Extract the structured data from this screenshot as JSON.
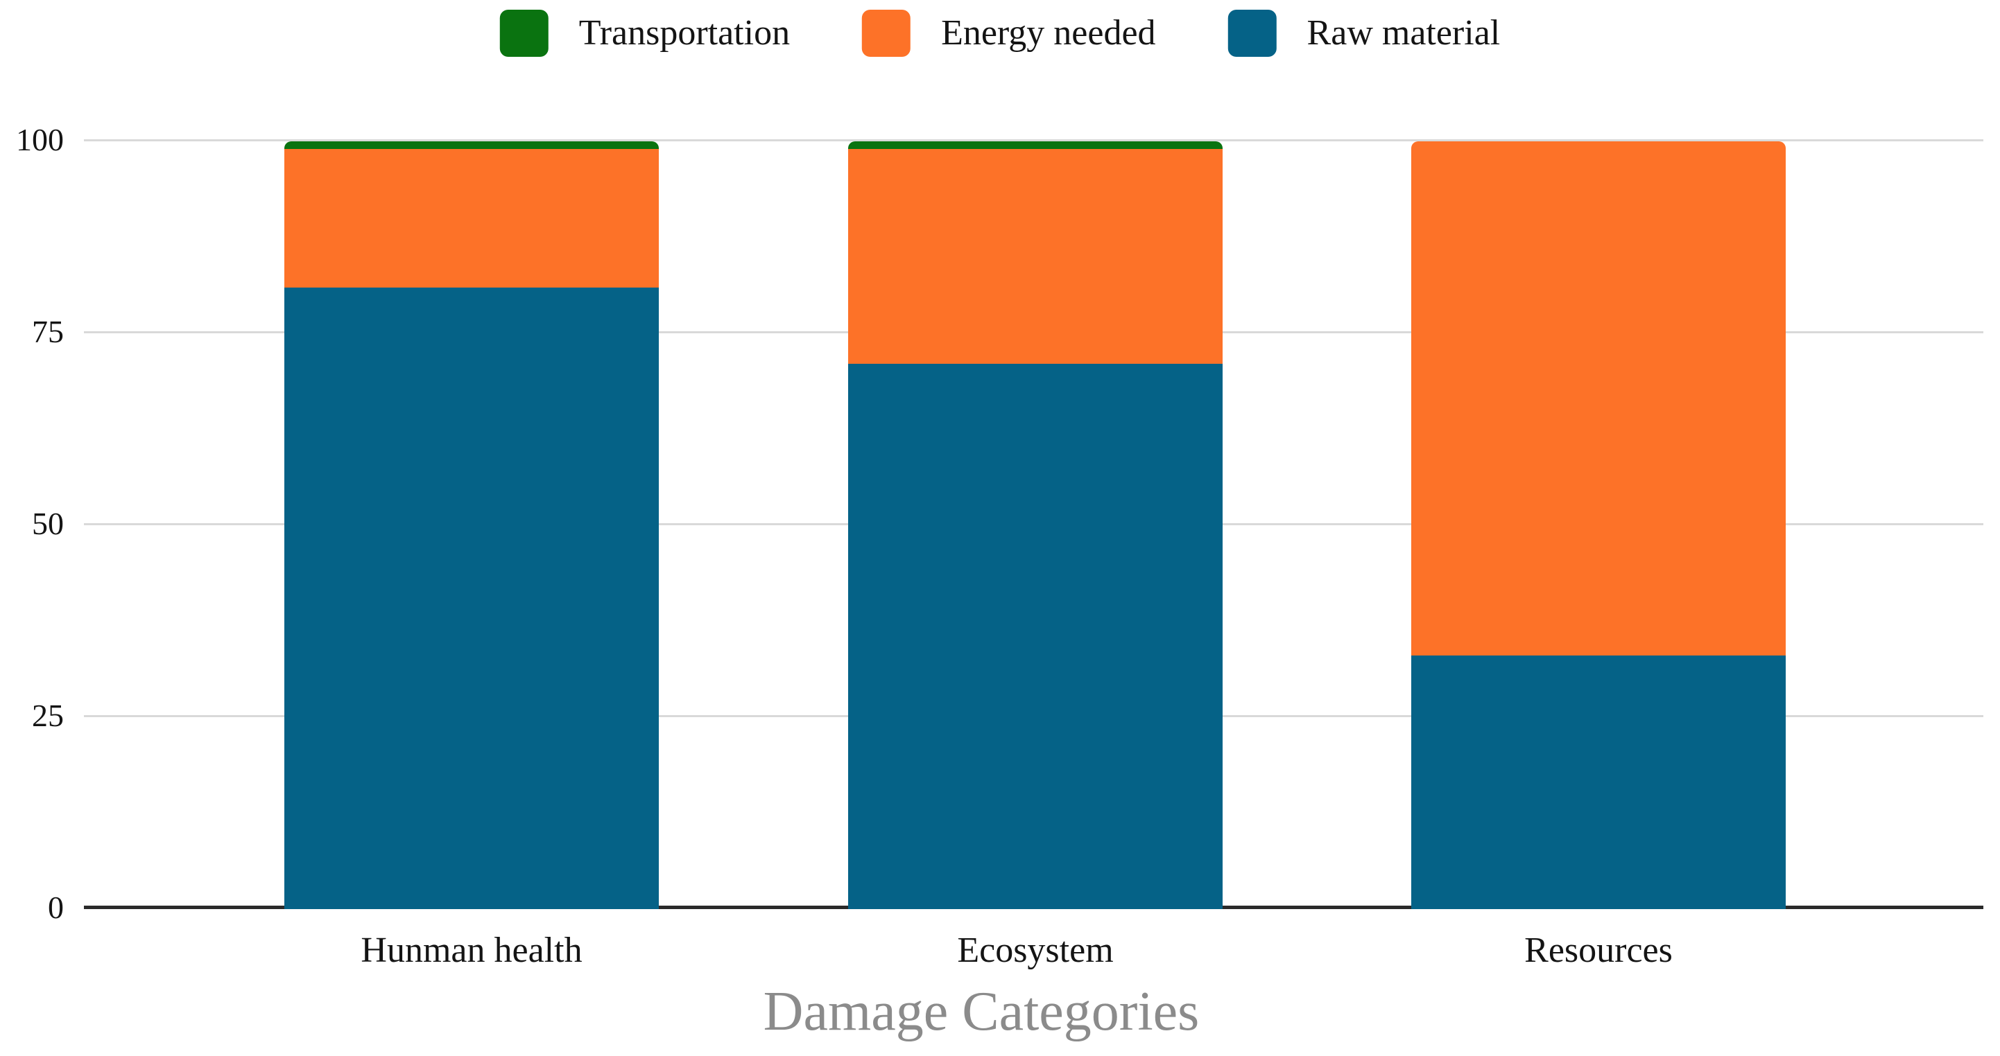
{
  "chart_data": {
    "type": "bar",
    "stacked": true,
    "categories": [
      "Hunman health",
      "Ecosystem",
      "Resources"
    ],
    "series": [
      {
        "name": "Transportation",
        "color": "#0a7310",
        "values": [
          1,
          1,
          0
        ]
      },
      {
        "name": "Energy needed",
        "color": "#fd7228",
        "values": [
          18,
          28,
          67
        ]
      },
      {
        "name": "Raw material",
        "color": "#056287",
        "values": [
          81,
          71,
          33
        ]
      }
    ],
    "xlabel": "Damage Categories",
    "ylabel": "",
    "ylim": [
      0,
      100
    ],
    "yticks": [
      0,
      25,
      50,
      75,
      100
    ],
    "grid": true,
    "legend_position": "top-center"
  },
  "colors": {
    "background": "#ffffff",
    "gridline": "#d9d9d9",
    "axis_line": "#2a2a2a",
    "tick_label": "#141414",
    "axis_title": "#8b8b8b"
  }
}
